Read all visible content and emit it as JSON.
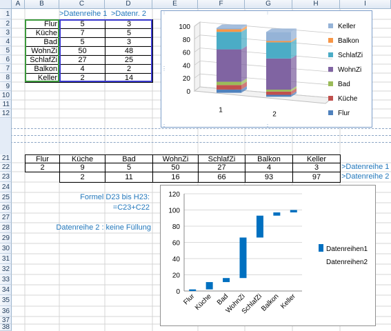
{
  "columns": [
    "A",
    "B",
    "C",
    "D",
    "E",
    "F",
    "G",
    "H",
    "I"
  ],
  "rows_top": [
    "1",
    "2",
    "3",
    "4",
    "5",
    "6",
    "7",
    "8",
    "9",
    "10",
    "11",
    "12"
  ],
  "rows_bottom": [
    "21",
    "22",
    "23",
    "24",
    "25",
    "26",
    "27",
    "28",
    "29",
    "30",
    "31",
    "32",
    "33",
    "34",
    "35",
    "36",
    "37",
    "38"
  ],
  "top_table": {
    "header_c": ">Datenreihe 1",
    "header_d": ">Datenr. 2",
    "rows": [
      {
        "label": "Flur",
        "c": "5",
        "d": "3"
      },
      {
        "label": "Küche",
        "c": "7",
        "d": "5"
      },
      {
        "label": "Bad",
        "c": "5",
        "d": "3"
      },
      {
        "label": "WohnZi",
        "c": "50",
        "d": "48"
      },
      {
        "label": "SchlafZi",
        "c": "27",
        "d": "25"
      },
      {
        "label": "Balkon",
        "c": "4",
        "d": "2"
      },
      {
        "label": "Keller",
        "c": "2",
        "d": "14"
      }
    ]
  },
  "bottom_table": {
    "headers": [
      "Flur",
      "Küche",
      "Bad",
      "WohnZi",
      "SchlafZi",
      "Balkon",
      "Keller"
    ],
    "row22": [
      "2",
      "9",
      "5",
      "50",
      "27",
      "4",
      "3"
    ],
    "row23": [
      "",
      "2",
      "11",
      "16",
      "66",
      "93",
      "97"
    ],
    "label22": ">Datenreihe 1",
    "label23": ">Datenreihe 2"
  },
  "notes": {
    "formula_line1": "Formel D23 bis H23:",
    "formula_line2": "=C23+C22",
    "series2_note": "Datenreihe 2 : keine Füllung"
  },
  "chart_data": [
    {
      "type": "bar",
      "stacked": true,
      "categories": [
        "1",
        "2"
      ],
      "ylim": [
        0,
        100
      ],
      "yticks": [
        "0",
        "20",
        "40",
        "60",
        "80",
        "100"
      ],
      "series": [
        {
          "name": "Flur",
          "values": [
            5,
            3
          ],
          "color": "#4f81bd"
        },
        {
          "name": "Küche",
          "values": [
            7,
            5
          ],
          "color": "#c0504d"
        },
        {
          "name": "Bad",
          "values": [
            5,
            3
          ],
          "color": "#9bbb59"
        },
        {
          "name": "WohnZi",
          "values": [
            50,
            48
          ],
          "color": "#8064a2"
        },
        {
          "name": "SchlafZi",
          "values": [
            27,
            25
          ],
          "color": "#4bacc6"
        },
        {
          "name": "Balkon",
          "values": [
            4,
            2
          ],
          "color": "#f79646"
        },
        {
          "name": "Keller",
          "values": [
            2,
            14
          ],
          "color": "#95b3d7"
        }
      ],
      "legend_position": "right"
    },
    {
      "type": "bar",
      "stacked": true,
      "categories": [
        "Flur",
        "Küche",
        "Bad",
        "WohnZi",
        "SchlafZi",
        "Balkon",
        "Keller"
      ],
      "ylim": [
        0,
        120
      ],
      "yticks": [
        "0",
        "20",
        "40",
        "60",
        "80",
        "100",
        "120"
      ],
      "series": [
        {
          "name": "Datenreihen1",
          "values": [
            2,
            9,
            5,
            50,
            27,
            4,
            3
          ],
          "color": "#0070c0"
        },
        {
          "name": "Datenreihen2",
          "values": [
            0,
            2,
            11,
            16,
            66,
            93,
            97
          ],
          "color": "none"
        }
      ],
      "legend_position": "right"
    }
  ]
}
